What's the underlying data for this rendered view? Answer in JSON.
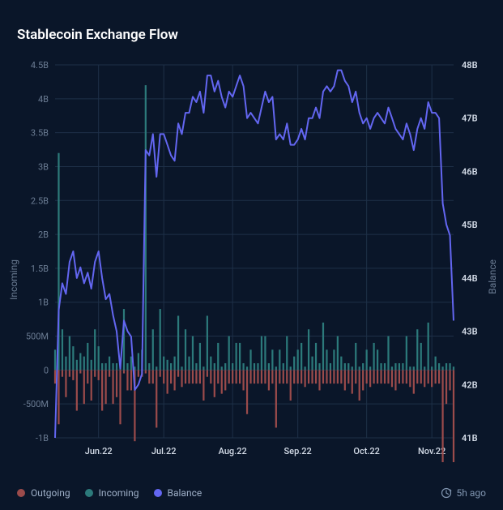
{
  "title": "Stablecoin Exchange Flow",
  "chart": {
    "type": "combo-line-bar",
    "background_color": "#0a1629",
    "grid_color": "#1e3048",
    "axis_text_color": "#6b7c93",
    "tick_fontsize": 11,
    "title_fontsize": 17,
    "title_color": "#ffffff",
    "left_axis": {
      "label": "Incoming",
      "min": -1000000000,
      "max": 4500000000,
      "ticks": [
        "-1B",
        "-500M",
        "0",
        "500M",
        "1B",
        "1.5B",
        "2B",
        "2.5B",
        "3B",
        "3.5B",
        "4B",
        "4.5B"
      ]
    },
    "right_axis": {
      "label": "Balance",
      "min": 41000000000,
      "max": 48000000000,
      "ticks": [
        "41B",
        "42B",
        "43B",
        "44B",
        "45B",
        "46B",
        "47B",
        "48B"
      ]
    },
    "x_axis": {
      "ticks": [
        "Jun.22",
        "Jul.22",
        "Aug.22",
        "Sep.22",
        "Oct.22",
        "Nov.22"
      ]
    },
    "series": {
      "balance": {
        "type": "line",
        "color": "#6366f1",
        "line_width": 2,
        "axis": "right"
      },
      "incoming": {
        "type": "bar",
        "color": "#2c7a7b",
        "axis": "left"
      },
      "outgoing": {
        "type": "bar",
        "color": "#9b4b4b",
        "axis": "left"
      }
    },
    "balance_values": [
      41.0,
      43.4,
      43.9,
      43.7,
      44.3,
      44.5,
      44.0,
      44.2,
      43.9,
      44.1,
      43.8,
      44.3,
      44.5,
      44.0,
      43.6,
      43.7,
      43.3,
      43.0,
      42.3,
      43.2,
      43.0,
      42.9,
      41.9,
      42.0,
      42.2,
      46.4,
      46.3,
      46.7,
      45.9,
      46.7,
      46.7,
      46.5,
      46.3,
      46.2,
      46.9,
      46.7,
      47.1,
      47.1,
      47.4,
      47.3,
      47.5,
      47.1,
      47.8,
      47.8,
      47.5,
      47.7,
      47.4,
      47.2,
      47.5,
      47.4,
      47.6,
      47.8,
      47.6,
      47.0,
      47.1,
      47.0,
      46.9,
      47.2,
      47.5,
      47.3,
      47.4,
      46.6,
      46.7,
      46.6,
      46.9,
      46.5,
      46.5,
      46.6,
      46.8,
      46.6,
      47.0,
      47.0,
      47.2,
      47.0,
      47.5,
      47.6,
      47.5,
      47.6,
      47.9,
      47.9,
      47.7,
      47.6,
      47.3,
      47.5,
      47.1,
      46.9,
      47.0,
      46.8,
      47.0,
      47.1,
      47.0,
      46.9,
      47.2,
      47.0,
      46.8,
      46.7,
      46.6,
      46.9,
      46.7,
      46.4,
      46.8,
      47.0,
      46.8,
      47.3,
      47.1,
      47.1,
      47.0,
      45.4,
      45.0,
      44.8,
      43.2
    ],
    "incoming_values": [
      300,
      3200,
      600,
      200,
      500,
      350,
      150,
      250,
      200,
      400,
      150,
      600,
      350,
      100,
      100,
      200,
      100,
      100,
      100,
      900,
      100,
      200,
      50,
      250,
      300,
      4200,
      100,
      600,
      50,
      900,
      200,
      150,
      100,
      200,
      800,
      50,
      600,
      200,
      500,
      100,
      400,
      50,
      800,
      200,
      100,
      400,
      50,
      100,
      500,
      100,
      400,
      400,
      100,
      50,
      300,
      100,
      100,
      500,
      500,
      100,
      300,
      50,
      300,
      100,
      500,
      50,
      200,
      300,
      400,
      50,
      600,
      200,
      400,
      100,
      700,
      300,
      100,
      300,
      500,
      200,
      100,
      100,
      50,
      400,
      50,
      100,
      300,
      50,
      400,
      300,
      100,
      100,
      500,
      50,
      100,
      100,
      100,
      500,
      50,
      50,
      600,
      400,
      50,
      700,
      50,
      200,
      100,
      50,
      100,
      100,
      50
    ],
    "outgoing_values": [
      -200,
      -800,
      -100,
      -400,
      -100,
      -150,
      -600,
      -50,
      -500,
      -200,
      -450,
      -100,
      -150,
      -600,
      -500,
      -100,
      -500,
      -400,
      -800,
      -50,
      -300,
      -300,
      -1050,
      -100,
      -100,
      -50,
      -200,
      -200,
      -850,
      -100,
      -200,
      -350,
      -200,
      -300,
      -100,
      -250,
      -200,
      -200,
      -200,
      -200,
      -200,
      -450,
      -100,
      -200,
      -400,
      -200,
      -350,
      -300,
      -200,
      -200,
      -200,
      -200,
      -300,
      -650,
      -200,
      -200,
      -200,
      -200,
      -200,
      -300,
      -200,
      -850,
      -200,
      -200,
      -200,
      -450,
      -200,
      -200,
      -200,
      -250,
      -200,
      -200,
      -200,
      -300,
      -200,
      -200,
      -200,
      -200,
      -200,
      -200,
      -300,
      -200,
      -350,
      -200,
      -450,
      -300,
      -200,
      -250,
      -200,
      -200,
      -200,
      -200,
      -200,
      -250,
      -300,
      -200,
      -200,
      -200,
      -250,
      -350,
      -200,
      -200,
      -250,
      -200,
      -250,
      -200,
      -200,
      -1650,
      -500,
      -300,
      -1650
    ]
  },
  "legend": {
    "outgoing": {
      "label": "Outgoing",
      "color": "#9b4b4b"
    },
    "incoming": {
      "label": "Incoming",
      "color": "#2c7a7b"
    },
    "balance": {
      "label": "Balance",
      "color": "#6366f1"
    }
  },
  "timestamp": "5h ago"
}
